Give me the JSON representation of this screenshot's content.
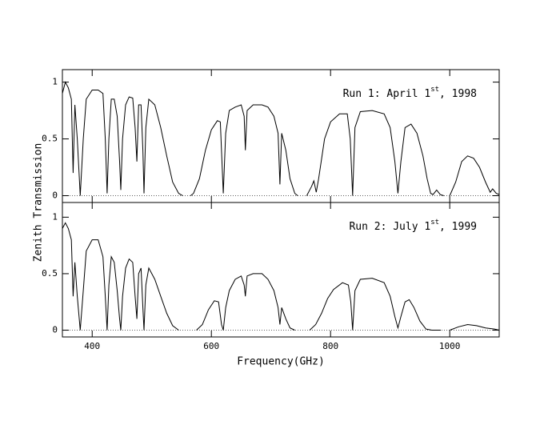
{
  "ylabel": "Zenith Transmission",
  "xlabel": "Frequency(GHz)",
  "chart_data": [
    {
      "type": "line",
      "annotation": "Run 1: April 1",
      "annotation_sup": "st",
      "annotation_end": ", 1998",
      "xlim": [
        350,
        1083
      ],
      "ylim": [
        -0.06,
        1.11
      ],
      "xticks": [
        400,
        600,
        800,
        1000
      ],
      "yticks": [
        0,
        0.5,
        1
      ],
      "xtick_labels": false,
      "reference_line": 0,
      "series": [
        {
          "color": "#000000",
          "x": [
            350,
            355,
            360,
            365,
            368,
            371,
            375,
            380,
            385,
            390,
            400,
            410,
            418,
            422,
            425,
            428,
            432,
            437,
            442,
            446,
            448,
            451,
            456,
            462,
            468,
            472,
            475,
            478,
            482,
            485,
            487,
            490,
            495,
            505,
            515,
            525,
            535,
            545,
            552,
            null,
            565,
            570,
            580,
            590,
            600,
            610,
            615,
            620,
            624,
            630,
            640,
            650,
            655,
            657,
            660,
            670,
            685,
            695,
            705,
            712,
            715,
            718,
            725,
            732,
            740,
            745,
            null,
            760,
            768,
            772,
            776,
            780,
            790,
            800,
            815,
            828,
            833,
            837,
            841,
            850,
            870,
            890,
            900,
            908,
            913,
            918,
            925,
            935,
            945,
            955,
            962,
            968,
            972,
            978,
            984,
            990,
            null,
            1000,
            1010,
            1020,
            1030,
            1040,
            1050,
            1060,
            1068,
            1072,
            1078,
            1083
          ],
          "values": [
            0.9,
            1.0,
            0.95,
            0.85,
            0.2,
            0.8,
            0.5,
            0.0,
            0.5,
            0.85,
            0.93,
            0.93,
            0.9,
            0.5,
            0.02,
            0.5,
            0.85,
            0.85,
            0.7,
            0.3,
            0.05,
            0.5,
            0.8,
            0.87,
            0.86,
            0.6,
            0.3,
            0.8,
            0.8,
            0.4,
            0.02,
            0.6,
            0.85,
            0.8,
            0.6,
            0.35,
            0.12,
            0.02,
            0.0,
            null,
            0.0,
            0.02,
            0.15,
            0.4,
            0.58,
            0.66,
            0.65,
            0.02,
            0.55,
            0.75,
            0.78,
            0.8,
            0.7,
            0.4,
            0.75,
            0.8,
            0.8,
            0.78,
            0.7,
            0.55,
            0.1,
            0.55,
            0.4,
            0.15,
            0.02,
            0.0,
            null,
            0.0,
            0.08,
            0.13,
            0.03,
            0.15,
            0.5,
            0.65,
            0.72,
            0.72,
            0.5,
            0.0,
            0.6,
            0.74,
            0.75,
            0.72,
            0.6,
            0.3,
            0.02,
            0.3,
            0.6,
            0.63,
            0.55,
            0.35,
            0.15,
            0.02,
            0.01,
            0.05,
            0.01,
            0.0,
            null,
            0.0,
            0.12,
            0.3,
            0.35,
            0.33,
            0.25,
            0.12,
            0.03,
            0.06,
            0.02,
            0.01
          ]
        }
      ]
    },
    {
      "type": "line",
      "annotation": "Run 2: July 1",
      "annotation_sup": "st",
      "annotation_end": ", 1999",
      "xlim": [
        350,
        1083
      ],
      "ylim": [
        -0.06,
        1.13
      ],
      "xticks": [
        400,
        600,
        800,
        1000
      ],
      "yticks": [
        0,
        0.5,
        1
      ],
      "xtick_labels": true,
      "reference_line": 0,
      "series": [
        {
          "color": "#000000",
          "x": [
            350,
            355,
            360,
            365,
            368,
            371,
            375,
            380,
            385,
            390,
            400,
            410,
            418,
            422,
            425,
            428,
            432,
            437,
            442,
            446,
            448,
            451,
            456,
            462,
            468,
            472,
            475,
            478,
            482,
            485,
            487,
            490,
            495,
            505,
            515,
            525,
            535,
            545,
            null,
            575,
            585,
            595,
            605,
            612,
            617,
            620,
            624,
            630,
            640,
            650,
            655,
            657,
            660,
            670,
            685,
            695,
            705,
            712,
            715,
            718,
            725,
            732,
            740,
            null,
            765,
            775,
            785,
            795,
            805,
            820,
            830,
            834,
            837,
            841,
            850,
            870,
            890,
            900,
            908,
            913,
            918,
            925,
            932,
            940,
            950,
            960,
            970,
            985,
            null,
            1000,
            1015,
            1030,
            1045,
            1060,
            1075,
            1083
          ],
          "values": [
            0.9,
            0.95,
            0.9,
            0.8,
            0.3,
            0.6,
            0.3,
            0.0,
            0.35,
            0.7,
            0.8,
            0.8,
            0.65,
            0.3,
            0.0,
            0.4,
            0.65,
            0.6,
            0.35,
            0.1,
            0.0,
            0.3,
            0.55,
            0.63,
            0.6,
            0.3,
            0.1,
            0.5,
            0.55,
            0.2,
            0.0,
            0.4,
            0.55,
            0.45,
            0.3,
            0.15,
            0.04,
            0.0,
            null,
            0.0,
            0.05,
            0.18,
            0.26,
            0.25,
            0.05,
            0.0,
            0.2,
            0.35,
            0.45,
            0.48,
            0.4,
            0.3,
            0.48,
            0.5,
            0.5,
            0.45,
            0.35,
            0.2,
            0.05,
            0.2,
            0.1,
            0.02,
            0.0,
            null,
            0.0,
            0.05,
            0.15,
            0.28,
            0.36,
            0.42,
            0.4,
            0.25,
            0.0,
            0.35,
            0.45,
            0.46,
            0.42,
            0.3,
            0.12,
            0.02,
            0.12,
            0.25,
            0.27,
            0.2,
            0.08,
            0.01,
            0.0,
            0.0,
            null,
            0.0,
            0.03,
            0.05,
            0.04,
            0.02,
            0.01,
            0.0
          ]
        }
      ]
    }
  ]
}
